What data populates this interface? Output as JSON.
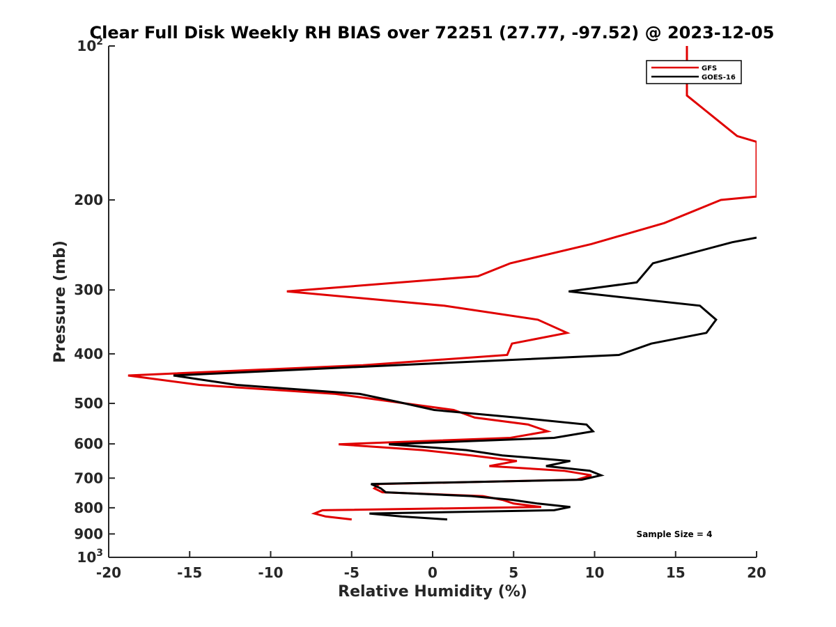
{
  "chart_data": {
    "type": "line",
    "title": "Clear Full Disk Weekly RH BIAS over 72251 (27.77, -97.52) @ 2023-12-05",
    "xlabel": "Relative Humidity (%)",
    "ylabel": "Pressure (mb)",
    "xlim": [
      -20,
      20
    ],
    "ylim": [
      100,
      1000
    ],
    "y_scale": "log",
    "y_reversed": true,
    "x_ticks": [
      "-20",
      "-15",
      "-10",
      "-5",
      "0",
      "5",
      "10",
      "15",
      "20"
    ],
    "x_tick_values": [
      -20,
      -15,
      -10,
      -5,
      0,
      5,
      10,
      15,
      20
    ],
    "y_ticks": [
      {
        "value": 100,
        "base": "10",
        "exp": "2"
      },
      {
        "value": 200,
        "label": "200"
      },
      {
        "value": 300,
        "label": "300"
      },
      {
        "value": 400,
        "label": "400"
      },
      {
        "value": 500,
        "label": "500"
      },
      {
        "value": 600,
        "label": "600"
      },
      {
        "value": 700,
        "label": "700"
      },
      {
        "value": 800,
        "label": "800"
      },
      {
        "value": 900,
        "label": "900"
      },
      {
        "value": 1000,
        "base": "10",
        "exp": "3"
      }
    ],
    "grid": false,
    "legend_position": "top-right",
    "annotation": "Sample Size = 4",
    "series": [
      {
        "name": "GFS",
        "color": "#e00000",
        "points": [
          [
            15.7,
            100
          ],
          [
            15.7,
            125
          ],
          [
            18.8,
            150
          ],
          [
            20,
            154
          ],
          [
            20,
            197
          ],
          [
            17.8,
            200
          ],
          [
            14.3,
            222
          ],
          [
            9.8,
            244
          ],
          [
            4.8,
            266
          ],
          [
            2.8,
            282
          ],
          [
            -9,
            302
          ],
          [
            0.7,
            322
          ],
          [
            6.5,
            343
          ],
          [
            8.3,
            364
          ],
          [
            4.9,
            382
          ],
          [
            4.6,
            402
          ],
          [
            -4.3,
            421
          ],
          [
            -18.8,
            441
          ],
          [
            -14.4,
            460
          ],
          [
            -6.0,
            479
          ],
          [
            -2.3,
            497
          ],
          [
            1.3,
            515
          ],
          [
            2.6,
            533
          ],
          [
            5.9,
            550
          ],
          [
            7.1,
            567
          ],
          [
            4.8,
            584
          ],
          [
            -5.8,
            601
          ],
          [
            -0.6,
            617
          ],
          [
            2.4,
            632
          ],
          [
            5.2,
            648
          ],
          [
            3.5,
            663
          ],
          [
            8.1,
            677
          ],
          [
            9.8,
            691
          ],
          [
            8.9,
            705
          ],
          [
            -3.3,
            719
          ],
          [
            -3.6,
            733
          ],
          [
            -3.1,
            746
          ],
          [
            3.1,
            759
          ],
          [
            4.3,
            772
          ],
          [
            5.0,
            785
          ],
          [
            6.7,
            797
          ],
          [
            -6.8,
            809
          ],
          [
            -7.3,
            821
          ],
          [
            -6.6,
            832
          ],
          [
            -5.0,
            843
          ]
        ]
      },
      {
        "name": "GOES-16",
        "color": "#000000",
        "points": [
          [
            20,
            237
          ],
          [
            18.5,
            242
          ],
          [
            13.6,
            266
          ],
          [
            12.6,
            290
          ],
          [
            8.4,
            302
          ],
          [
            16.5,
            322
          ],
          [
            17.5,
            343
          ],
          [
            16.9,
            364
          ],
          [
            13.5,
            382
          ],
          [
            11.5,
            402
          ],
          [
            -2.3,
            421
          ],
          [
            -16.0,
            441
          ],
          [
            -12.1,
            460
          ],
          [
            -4.5,
            479
          ],
          [
            -2.1,
            497
          ],
          [
            0.1,
            515
          ],
          [
            5.2,
            533
          ],
          [
            9.5,
            550
          ],
          [
            9.9,
            567
          ],
          [
            7.5,
            584
          ],
          [
            -2.7,
            601
          ],
          [
            2.1,
            617
          ],
          [
            4.3,
            632
          ],
          [
            8.5,
            648
          ],
          [
            7.0,
            663
          ],
          [
            9.7,
            677
          ],
          [
            10.4,
            691
          ],
          [
            9.2,
            705
          ],
          [
            -3.8,
            719
          ],
          [
            -3.2,
            733
          ],
          [
            -2.9,
            746
          ],
          [
            2.4,
            759
          ],
          [
            4.9,
            772
          ],
          [
            6.5,
            785
          ],
          [
            8.5,
            797
          ],
          [
            7.5,
            809
          ],
          [
            -3.9,
            821
          ],
          [
            -1.9,
            832
          ],
          [
            0.9,
            843
          ]
        ]
      }
    ]
  }
}
